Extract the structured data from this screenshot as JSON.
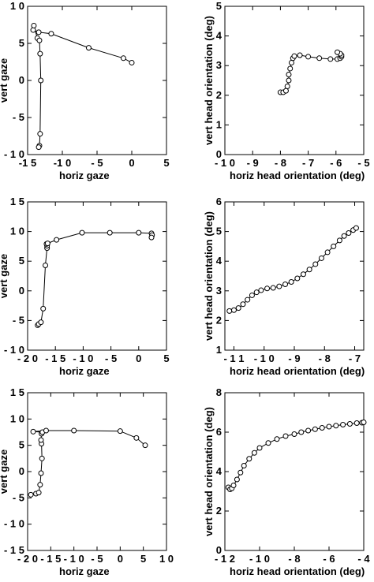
{
  "colors": {
    "stroke": "#000000",
    "background": "#ffffff"
  },
  "chart_data": [
    {
      "type": "line",
      "xlabel": "horiz gaze",
      "ylabel": "vert gaze",
      "xlim": [
        -15,
        5
      ],
      "ylim": [
        -10,
        10
      ],
      "xticks": [
        -15,
        -10,
        -5,
        0,
        5
      ],
      "yticks": [
        -10,
        -5,
        0,
        5,
        10
      ],
      "xtick_labels": [
        "-1 5",
        "-1 0",
        "- 5",
        "0",
        "5"
      ],
      "ytick_labels": [
        "- 1 0",
        "- 5",
        "0",
        "5",
        "1 0"
      ],
      "series": [
        {
          "x": [
            0,
            -1.2,
            -6.2,
            -11.6,
            -13.4,
            -14.2,
            -14.1,
            -13.6,
            -13.3,
            -13.2,
            -13.1,
            -13.2,
            -13.3,
            -13.4
          ],
          "y": [
            2.4,
            3.0,
            4.4,
            6.3,
            6.5,
            6.8,
            7.4,
            5.7,
            5.4,
            3.6,
            0.0,
            -7.2,
            -8.8,
            -9.0
          ]
        }
      ]
    },
    {
      "type": "line",
      "xlabel": "horiz head orientation (deg)",
      "ylabel": "vert head orientation (deg)",
      "xlim": [
        -10,
        -5
      ],
      "ylim": [
        0,
        5
      ],
      "xticks": [
        -10,
        -9,
        -8,
        -7,
        -6,
        -5
      ],
      "yticks": [
        0,
        1,
        2,
        3,
        4,
        5
      ],
      "xtick_labels": [
        "- 1 0",
        "- 9",
        "- 8",
        "- 7",
        "- 6",
        "- 5"
      ],
      "ytick_labels": [
        "0",
        "1",
        "2",
        "3",
        "4",
        "5"
      ],
      "series": [
        {
          "x": [
            -8.0,
            -7.9,
            -7.8,
            -7.75,
            -7.7,
            -7.7,
            -7.65,
            -7.6,
            -7.55,
            -7.5,
            -7.3,
            -7.0,
            -6.6,
            -6.2,
            -5.95,
            -5.85,
            -5.8,
            -5.8,
            -5.85,
            -5.95
          ],
          "y": [
            2.1,
            2.1,
            2.15,
            2.3,
            2.5,
            2.7,
            2.9,
            3.1,
            3.25,
            3.32,
            3.35,
            3.3,
            3.25,
            3.22,
            3.22,
            3.25,
            3.3,
            3.35,
            3.4,
            3.45
          ]
        }
      ]
    },
    {
      "type": "line",
      "xlabel": "horiz gaze",
      "ylabel": "vert gaze",
      "xlim": [
        -20,
        5
      ],
      "ylim": [
        -10,
        15
      ],
      "xticks": [
        -20,
        -15,
        -10,
        -5,
        0,
        5
      ],
      "yticks": [
        -10,
        -5,
        0,
        5,
        10,
        15
      ],
      "xtick_labels": [
        "- 2 0",
        "- 1 5",
        "- 1 0",
        "- 5",
        "0",
        "5"
      ],
      "ytick_labels": [
        "- 1 0",
        "- 5",
        "0",
        "5",
        "1 0",
        "1 5"
      ],
      "series": [
        {
          "x": [
            -18.2,
            -18.0,
            -17.6,
            -17.2,
            -16.8,
            -16.5,
            -16.5,
            -16.6,
            -16.4,
            -14.8,
            -10.2,
            -5.2,
            0.0,
            2.3,
            2.4,
            2.3
          ],
          "y": [
            -5.8,
            -5.6,
            -5.3,
            -3.0,
            4.3,
            7.2,
            7.6,
            7.9,
            8.0,
            8.6,
            9.8,
            9.8,
            9.8,
            9.7,
            9.4,
            9.0
          ]
        }
      ]
    },
    {
      "type": "line",
      "xlabel": "horiz head orientation (deg)",
      "ylabel": "vert head orientation (deg)",
      "xlim": [
        -11.3,
        -6.7
      ],
      "ylim": [
        1,
        6
      ],
      "xticks": [
        -11,
        -10,
        -9,
        -8,
        -7
      ],
      "yticks": [
        1,
        2,
        3,
        4,
        5,
        6
      ],
      "xtick_labels": [
        "- 1 1",
        "- 1 0",
        "- 9",
        "- 8",
        "- 7"
      ],
      "ytick_labels": [
        "1",
        "2",
        "3",
        "4",
        "5",
        "6"
      ],
      "series": [
        {
          "x": [
            -11.15,
            -11.0,
            -10.85,
            -10.7,
            -10.55,
            -10.4,
            -10.25,
            -10.1,
            -9.9,
            -9.7,
            -9.5,
            -9.3,
            -9.1,
            -8.9,
            -8.7,
            -8.5,
            -8.3,
            -8.1,
            -7.9,
            -7.7,
            -7.5,
            -7.35,
            -7.2,
            -7.05,
            -6.95
          ],
          "y": [
            2.32,
            2.35,
            2.42,
            2.55,
            2.7,
            2.85,
            2.95,
            3.02,
            3.08,
            3.1,
            3.15,
            3.22,
            3.3,
            3.42,
            3.56,
            3.72,
            3.9,
            4.1,
            4.3,
            4.5,
            4.7,
            4.85,
            4.95,
            5.05,
            5.12
          ]
        }
      ]
    },
    {
      "type": "line",
      "xlabel": "horiz gaze",
      "ylabel": "vert gaze",
      "xlim": [
        -20,
        10
      ],
      "ylim": [
        -15,
        15
      ],
      "xticks": [
        -20,
        -15,
        -10,
        -5,
        0,
        5,
        10
      ],
      "yticks": [
        -15,
        -10,
        -5,
        0,
        5,
        10,
        15
      ],
      "xtick_labels": [
        "- 2 0",
        "- 1 5",
        "- 1 0",
        "- 5",
        "0",
        "5",
        "1 0"
      ],
      "ytick_labels": [
        "- 1 5",
        "- 1 0",
        "- 5",
        "0",
        "5",
        "1 0",
        "1 5"
      ],
      "series": [
        {
          "x": [
            -19.3,
            -18.2,
            -17.6,
            -17.3,
            -17.1,
            -16.9,
            -17.0,
            -17.1,
            -17.0,
            -16.8,
            -18.8,
            -16.0,
            -10.0,
            0.0,
            3.5,
            5.4
          ],
          "y": [
            -4.4,
            -4.2,
            -4.0,
            -2.5,
            -0.3,
            2.5,
            5.3,
            6.0,
            7.2,
            7.5,
            7.6,
            7.8,
            7.8,
            7.7,
            6.4,
            5.0
          ]
        }
      ]
    },
    {
      "type": "line",
      "xlabel": "horiz head orientation (deg)",
      "ylabel": "vert head orientation (deg)",
      "xlim": [
        -12,
        -4
      ],
      "ylim": [
        0,
        8
      ],
      "xticks": [
        -12,
        -10,
        -8,
        -6,
        -4
      ],
      "yticks": [
        0,
        2,
        4,
        6,
        8
      ],
      "xtick_labels": [
        "- 1 2",
        "- 1 0",
        "- 8",
        "- 6",
        "- 4"
      ],
      "ytick_labels": [
        "0",
        "2",
        "4",
        "6",
        "8"
      ],
      "series": [
        {
          "x": [
            -11.8,
            -11.7,
            -11.6,
            -11.5,
            -11.3,
            -11.1,
            -10.9,
            -10.6,
            -10.3,
            -10.0,
            -9.5,
            -9.0,
            -8.5,
            -8.0,
            -7.6,
            -7.2,
            -6.8,
            -6.4,
            -6.0,
            -5.6,
            -5.2,
            -4.8,
            -4.4,
            -4.1,
            -4.0
          ],
          "y": [
            3.2,
            3.1,
            3.15,
            3.3,
            3.6,
            3.95,
            4.3,
            4.65,
            4.95,
            5.2,
            5.45,
            5.65,
            5.8,
            5.9,
            6.0,
            6.08,
            6.15,
            6.22,
            6.28,
            6.33,
            6.38,
            6.42,
            6.46,
            6.48,
            6.5
          ]
        }
      ]
    }
  ]
}
